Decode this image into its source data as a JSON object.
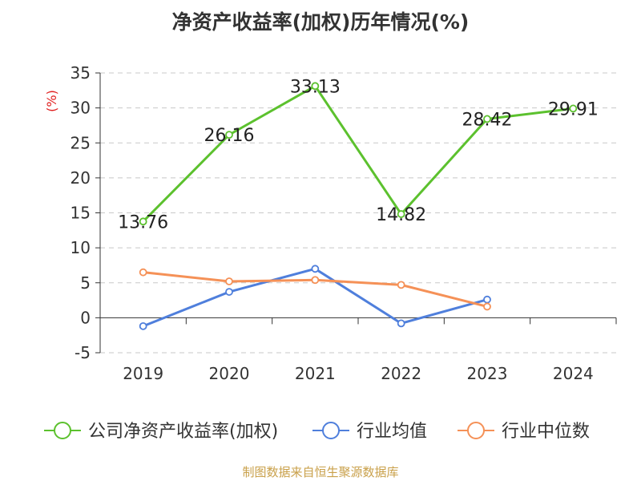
{
  "chart_data": {
    "type": "line",
    "title": "净资产收益率(加权)历年情况(%)",
    "ylabel": "(%)",
    "categories": [
      "2019",
      "2020",
      "2021",
      "2022",
      "2023",
      "2024"
    ],
    "ylim": [
      -5,
      35
    ],
    "yticks": [
      -5,
      0,
      5,
      10,
      15,
      20,
      25,
      30,
      35
    ],
    "grid": true,
    "legend_position": "bottom",
    "series": [
      {
        "name": "公司净资产收益率(加权)",
        "color": "#5cc12e",
        "values": [
          13.76,
          26.16,
          33.13,
          14.82,
          28.42,
          29.91
        ],
        "labels": [
          "13.76",
          "26.16",
          "33.13",
          "14.82",
          "28.42",
          "29.91"
        ]
      },
      {
        "name": "行业均值",
        "color": "#4f7fdc",
        "values": [
          -1.2,
          3.7,
          7.0,
          -0.8,
          2.6,
          null
        ]
      },
      {
        "name": "行业中位数",
        "color": "#f59157",
        "values": [
          6.5,
          5.2,
          5.4,
          4.7,
          1.6,
          null
        ]
      }
    ]
  },
  "source": "制图数据来自恒生聚源数据库"
}
